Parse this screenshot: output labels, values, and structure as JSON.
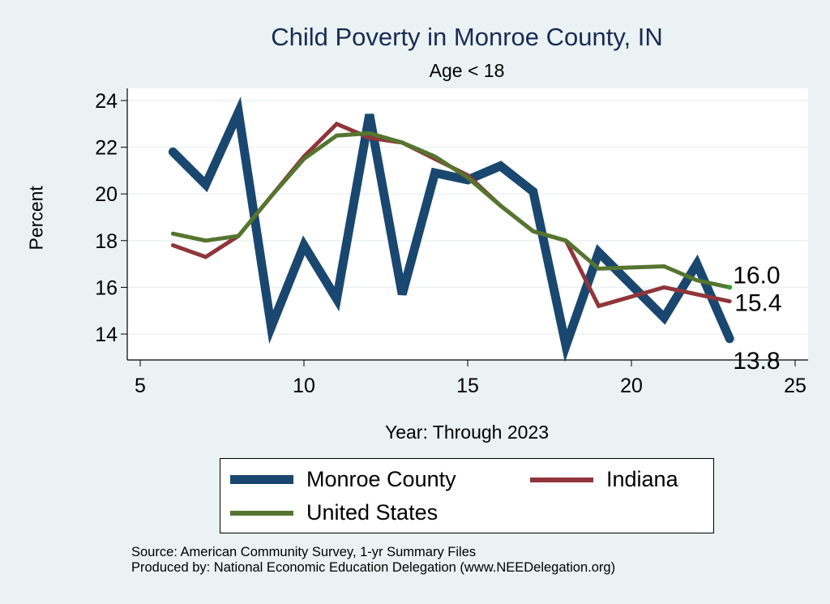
{
  "chart_data": {
    "type": "line",
    "title": "Child Poverty in Monroe County, IN",
    "subtitle": "Age < 18",
    "xlabel": "Year: Through 2023",
    "ylabel": "Percent",
    "xlim": [
      5,
      25
    ],
    "ylim": [
      13,
      24.5
    ],
    "xticks": [
      5,
      10,
      15,
      20,
      25
    ],
    "yticks": [
      14,
      16,
      18,
      20,
      22,
      24
    ],
    "grid": true,
    "legend_placement": "bottom",
    "series": [
      {
        "name": "Monroe County",
        "color": "#1a476f",
        "x": [
          6,
          7,
          8,
          9,
          10,
          11,
          12,
          13,
          14,
          15,
          16,
          17,
          18,
          19,
          21,
          22,
          23
        ],
        "values": [
          21.8,
          20.4,
          23.5,
          14.3,
          17.8,
          15.5,
          23.4,
          15.7,
          20.9,
          20.6,
          21.2,
          20.1,
          13.5,
          17.5,
          14.7,
          17.0,
          13.8
        ],
        "end_label": "13.8"
      },
      {
        "name": "Indiana",
        "color": "#90353b",
        "x": [
          6,
          7,
          8,
          9,
          10,
          11,
          12,
          13,
          14,
          15,
          16,
          17,
          18,
          19,
          21,
          22,
          23
        ],
        "values": [
          17.8,
          17.3,
          18.2,
          19.9,
          21.6,
          23.0,
          22.4,
          22.2,
          21.5,
          20.8,
          19.5,
          18.4,
          18.0,
          15.2,
          16.0,
          15.7,
          15.4
        ],
        "end_label": "15.4"
      },
      {
        "name": "United States",
        "color": "#55752f",
        "x": [
          6,
          7,
          8,
          9,
          10,
          11,
          12,
          13,
          14,
          15,
          16,
          17,
          18,
          19,
          21,
          22,
          23
        ],
        "values": [
          18.3,
          18.0,
          18.2,
          19.9,
          21.5,
          22.5,
          22.6,
          22.2,
          21.6,
          20.7,
          19.5,
          18.4,
          18.0,
          16.8,
          16.9,
          16.3,
          16.0
        ],
        "end_label": "16.0"
      }
    ],
    "notes": [
      "Source: American Community Survey, 1-yr Summary Files",
      "Produced by: National Economic Education Delegation (www.NEEDelegation.org)"
    ]
  }
}
